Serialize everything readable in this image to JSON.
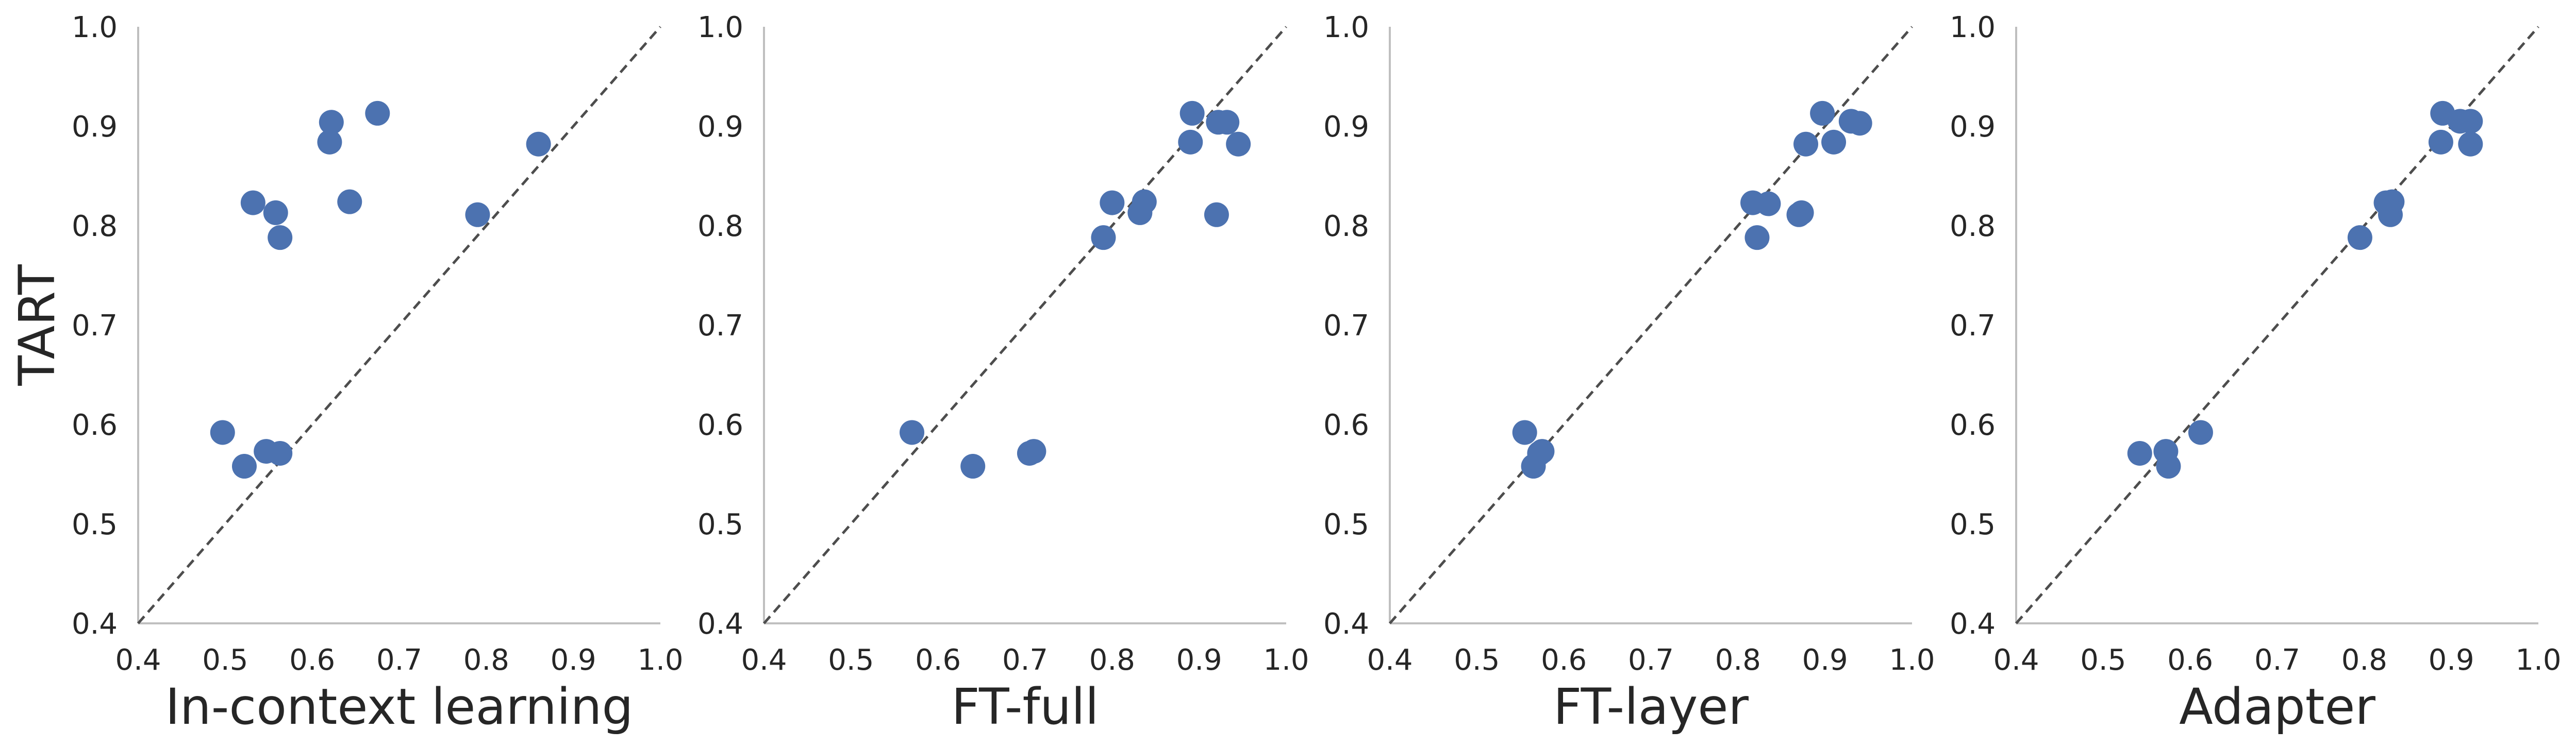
{
  "chart_data": [
    {
      "type": "scatter",
      "xlabel": "In-context learning",
      "ylabel": "TART",
      "xlim": [
        0.4,
        1.0
      ],
      "ylim": [
        0.4,
        1.0
      ],
      "xticks": [
        "0.4",
        "0.5",
        "0.6",
        "0.7",
        "0.8",
        "0.9",
        "1.0"
      ],
      "yticks": [
        "0.4",
        "0.5",
        "0.6",
        "0.7",
        "0.8",
        "0.9",
        "1.0"
      ],
      "grid": false,
      "reference_line": "y = x (dashed)",
      "marker_color": "#4c72b0",
      "points": [
        {
          "x": 0.497,
          "y": 0.592
        },
        {
          "x": 0.522,
          "y": 0.558
        },
        {
          "x": 0.532,
          "y": 0.823
        },
        {
          "x": 0.547,
          "y": 0.573
        },
        {
          "x": 0.558,
          "y": 0.813
        },
        {
          "x": 0.563,
          "y": 0.571
        },
        {
          "x": 0.563,
          "y": 0.788
        },
        {
          "x": 0.62,
          "y": 0.884
        },
        {
          "x": 0.622,
          "y": 0.904
        },
        {
          "x": 0.643,
          "y": 0.824
        },
        {
          "x": 0.675,
          "y": 0.913
        },
        {
          "x": 0.79,
          "y": 0.811
        },
        {
          "x": 0.86,
          "y": 0.882
        }
      ]
    },
    {
      "type": "scatter",
      "xlabel": "FT-full",
      "ylabel": "",
      "xlim": [
        0.4,
        1.0
      ],
      "ylim": [
        0.4,
        1.0
      ],
      "xticks": [
        "0.4",
        "0.5",
        "0.6",
        "0.7",
        "0.8",
        "0.9",
        "1.0"
      ],
      "yticks": [
        "0.4",
        "0.5",
        "0.6",
        "0.7",
        "0.8",
        "0.9",
        "1.0"
      ],
      "grid": false,
      "reference_line": "y = x (dashed)",
      "marker_color": "#4c72b0",
      "points": [
        {
          "x": 0.57,
          "y": 0.592
        },
        {
          "x": 0.64,
          "y": 0.558
        },
        {
          "x": 0.705,
          "y": 0.571
        },
        {
          "x": 0.71,
          "y": 0.573
        },
        {
          "x": 0.79,
          "y": 0.788
        },
        {
          "x": 0.8,
          "y": 0.823
        },
        {
          "x": 0.832,
          "y": 0.813
        },
        {
          "x": 0.837,
          "y": 0.824
        },
        {
          "x": 0.89,
          "y": 0.884
        },
        {
          "x": 0.892,
          "y": 0.913
        },
        {
          "x": 0.92,
          "y": 0.811
        },
        {
          "x": 0.922,
          "y": 0.904
        },
        {
          "x": 0.932,
          "y": 0.904
        },
        {
          "x": 0.945,
          "y": 0.882
        }
      ]
    },
    {
      "type": "scatter",
      "xlabel": "FT-layer",
      "ylabel": "",
      "xlim": [
        0.4,
        1.0
      ],
      "ylim": [
        0.4,
        1.0
      ],
      "xticks": [
        "0.4",
        "0.5",
        "0.6",
        "0.7",
        "0.8",
        "0.9",
        "1.0"
      ],
      "yticks": [
        "0.4",
        "0.5",
        "0.6",
        "0.7",
        "0.8",
        "0.9",
        "1.0"
      ],
      "grid": false,
      "reference_line": "y = x (dashed)",
      "marker_color": "#4c72b0",
      "points": [
        {
          "x": 0.555,
          "y": 0.592
        },
        {
          "x": 0.565,
          "y": 0.558
        },
        {
          "x": 0.572,
          "y": 0.571
        },
        {
          "x": 0.575,
          "y": 0.573
        },
        {
          "x": 0.817,
          "y": 0.823
        },
        {
          "x": 0.822,
          "y": 0.788
        },
        {
          "x": 0.835,
          "y": 0.822
        },
        {
          "x": 0.87,
          "y": 0.811
        },
        {
          "x": 0.873,
          "y": 0.813
        },
        {
          "x": 0.878,
          "y": 0.882
        },
        {
          "x": 0.897,
          "y": 0.913
        },
        {
          "x": 0.91,
          "y": 0.884
        },
        {
          "x": 0.93,
          "y": 0.905
        },
        {
          "x": 0.94,
          "y": 0.903
        }
      ]
    },
    {
      "type": "scatter",
      "xlabel": "Adapter",
      "ylabel": "",
      "xlim": [
        0.4,
        1.0
      ],
      "ylim": [
        0.4,
        1.0
      ],
      "xticks": [
        "0.4",
        "0.5",
        "0.6",
        "0.7",
        "0.8",
        "0.9",
        "1.0"
      ],
      "yticks": [
        "0.4",
        "0.5",
        "0.6",
        "0.7",
        "0.8",
        "0.9",
        "1.0"
      ],
      "grid": false,
      "reference_line": "y = x (dashed)",
      "marker_color": "#4c72b0",
      "points": [
        {
          "x": 0.542,
          "y": 0.571
        },
        {
          "x": 0.572,
          "y": 0.573
        },
        {
          "x": 0.575,
          "y": 0.558
        },
        {
          "x": 0.612,
          "y": 0.592
        },
        {
          "x": 0.795,
          "y": 0.788
        },
        {
          "x": 0.825,
          "y": 0.823
        },
        {
          "x": 0.83,
          "y": 0.811
        },
        {
          "x": 0.832,
          "y": 0.824
        },
        {
          "x": 0.888,
          "y": 0.884
        },
        {
          "x": 0.89,
          "y": 0.913
        },
        {
          "x": 0.91,
          "y": 0.905
        },
        {
          "x": 0.922,
          "y": 0.905
        },
        {
          "x": 0.922,
          "y": 0.882
        }
      ]
    }
  ]
}
